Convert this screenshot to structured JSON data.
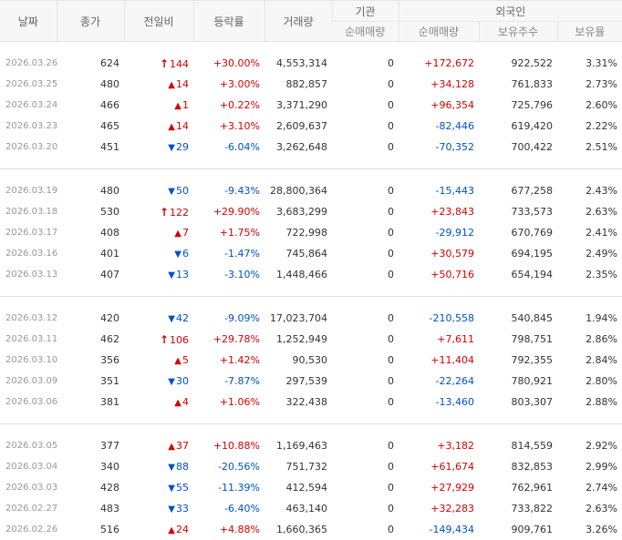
{
  "header": {
    "date": "날짜",
    "close": "종가",
    "change": "전일비",
    "rate": "등락률",
    "volume": "거래량",
    "institution": "기관",
    "foreign": "외국인",
    "inst_net": "순매매량",
    "foreign_net": "순매매량",
    "foreign_holding": "보유주수",
    "foreign_ratio": "보유율"
  },
  "colors": {
    "up": "#d60000",
    "down": "#0051c7"
  },
  "groups": [
    {
      "rows": [
        {
          "date": "2026.03.26",
          "close": "624",
          "dir": "limit-up",
          "change": "144",
          "rate": "+30.00%",
          "volume": "4,553,314",
          "inst_net": "0",
          "foreign_net": "+172,672",
          "foreign_holding": "922,522",
          "foreign_ratio": "3.31%"
        },
        {
          "date": "2026.03.25",
          "close": "480",
          "dir": "up",
          "change": "14",
          "rate": "+3.00%",
          "volume": "882,857",
          "inst_net": "0",
          "foreign_net": "+34,128",
          "foreign_holding": "761,833",
          "foreign_ratio": "2.73%"
        },
        {
          "date": "2026.03.24",
          "close": "466",
          "dir": "up",
          "change": "1",
          "rate": "+0.22%",
          "volume": "3,371,290",
          "inst_net": "0",
          "foreign_net": "+96,354",
          "foreign_holding": "725,796",
          "foreign_ratio": "2.60%"
        },
        {
          "date": "2026.03.23",
          "close": "465",
          "dir": "up",
          "change": "14",
          "rate": "+3.10%",
          "volume": "2,609,637",
          "inst_net": "0",
          "foreign_net": "-82,446",
          "foreign_holding": "619,420",
          "foreign_ratio": "2.22%"
        },
        {
          "date": "2026.03.20",
          "close": "451",
          "dir": "down",
          "change": "29",
          "rate": "-6.04%",
          "volume": "3,262,648",
          "inst_net": "0",
          "foreign_net": "-70,352",
          "foreign_holding": "700,422",
          "foreign_ratio": "2.51%"
        }
      ]
    },
    {
      "rows": [
        {
          "date": "2026.03.19",
          "close": "480",
          "dir": "down",
          "change": "50",
          "rate": "-9.43%",
          "volume": "28,800,364",
          "inst_net": "0",
          "foreign_net": "-15,443",
          "foreign_holding": "677,258",
          "foreign_ratio": "2.43%"
        },
        {
          "date": "2026.03.18",
          "close": "530",
          "dir": "limit-up",
          "change": "122",
          "rate": "+29.90%",
          "volume": "3,683,299",
          "inst_net": "0",
          "foreign_net": "+23,843",
          "foreign_holding": "733,573",
          "foreign_ratio": "2.63%"
        },
        {
          "date": "2026.03.17",
          "close": "408",
          "dir": "up",
          "change": "7",
          "rate": "+1.75%",
          "volume": "722,998",
          "inst_net": "0",
          "foreign_net": "-29,912",
          "foreign_holding": "670,769",
          "foreign_ratio": "2.41%"
        },
        {
          "date": "2026.03.16",
          "close": "401",
          "dir": "down",
          "change": "6",
          "rate": "-1.47%",
          "volume": "745,864",
          "inst_net": "0",
          "foreign_net": "+30,579",
          "foreign_holding": "694,195",
          "foreign_ratio": "2.49%"
        },
        {
          "date": "2026.03.13",
          "close": "407",
          "dir": "down",
          "change": "13",
          "rate": "-3.10%",
          "volume": "1,448,466",
          "inst_net": "0",
          "foreign_net": "+50,716",
          "foreign_holding": "654,194",
          "foreign_ratio": "2.35%"
        }
      ]
    },
    {
      "rows": [
        {
          "date": "2026.03.12",
          "close": "420",
          "dir": "down",
          "change": "42",
          "rate": "-9.09%",
          "volume": "17,023,704",
          "inst_net": "0",
          "foreign_net": "-210,558",
          "foreign_holding": "540,845",
          "foreign_ratio": "1.94%"
        },
        {
          "date": "2026.03.11",
          "close": "462",
          "dir": "limit-up",
          "change": "106",
          "rate": "+29.78%",
          "volume": "1,252,949",
          "inst_net": "0",
          "foreign_net": "+7,611",
          "foreign_holding": "798,751",
          "foreign_ratio": "2.86%"
        },
        {
          "date": "2026.03.10",
          "close": "356",
          "dir": "up",
          "change": "5",
          "rate": "+1.42%",
          "volume": "90,530",
          "inst_net": "0",
          "foreign_net": "+11,404",
          "foreign_holding": "792,355",
          "foreign_ratio": "2.84%"
        },
        {
          "date": "2026.03.09",
          "close": "351",
          "dir": "down",
          "change": "30",
          "rate": "-7.87%",
          "volume": "297,539",
          "inst_net": "0",
          "foreign_net": "-22,264",
          "foreign_holding": "780,921",
          "foreign_ratio": "2.80%"
        },
        {
          "date": "2026.03.06",
          "close": "381",
          "dir": "up",
          "change": "4",
          "rate": "+1.06%",
          "volume": "322,438",
          "inst_net": "0",
          "foreign_net": "-13,460",
          "foreign_holding": "803,307",
          "foreign_ratio": "2.88%"
        }
      ]
    },
    {
      "rows": [
        {
          "date": "2026.03.05",
          "close": "377",
          "dir": "up",
          "change": "37",
          "rate": "+10.88%",
          "volume": "1,169,463",
          "inst_net": "0",
          "foreign_net": "+3,182",
          "foreign_holding": "814,559",
          "foreign_ratio": "2.92%"
        },
        {
          "date": "2026.03.04",
          "close": "340",
          "dir": "down",
          "change": "88",
          "rate": "-20.56%",
          "volume": "751,732",
          "inst_net": "0",
          "foreign_net": "+61,674",
          "foreign_holding": "832,853",
          "foreign_ratio": "2.99%"
        },
        {
          "date": "2026.03.03",
          "close": "428",
          "dir": "down",
          "change": "55",
          "rate": "-11.39%",
          "volume": "412,594",
          "inst_net": "0",
          "foreign_net": "+27,929",
          "foreign_holding": "762,961",
          "foreign_ratio": "2.74%"
        },
        {
          "date": "2026.02.27",
          "close": "483",
          "dir": "down",
          "change": "33",
          "rate": "-6.40%",
          "volume": "463,140",
          "inst_net": "0",
          "foreign_net": "+32,283",
          "foreign_holding": "733,822",
          "foreign_ratio": "2.63%"
        },
        {
          "date": "2026.02.26",
          "close": "516",
          "dir": "up",
          "change": "24",
          "rate": "+4.88%",
          "volume": "1,660,365",
          "inst_net": "0",
          "foreign_net": "-149,434",
          "foreign_holding": "909,761",
          "foreign_ratio": "3.26%"
        }
      ]
    }
  ]
}
